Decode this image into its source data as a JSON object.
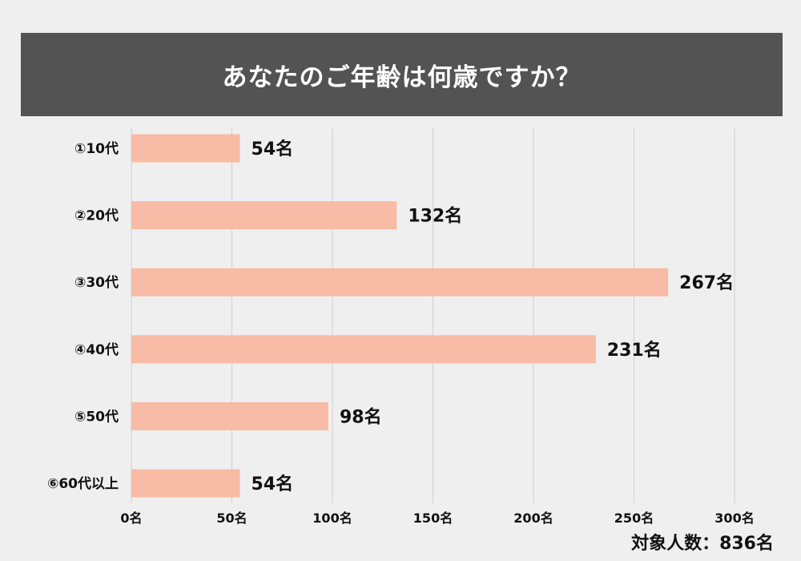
{
  "title": "あなたのご年齢は何歳ですか？",
  "total_label": "対象人数：836名",
  "colors": {
    "title_bg": "#535353",
    "bar": "#f8bba5",
    "gridline": "#cfcfcf",
    "background": "#efefef"
  },
  "chart_data": {
    "type": "bar",
    "orientation": "horizontal",
    "title": "あなたのご年齢は何歳ですか？",
    "categories": [
      "①10代",
      "②20代",
      "③30代",
      "④40代",
      "⑤50代",
      "⑥60代以上"
    ],
    "values": [
      54,
      132,
      267,
      231,
      98,
      54
    ],
    "value_labels": [
      "54名",
      "132名",
      "267名",
      "231名",
      "98名",
      "54名"
    ],
    "xlim": [
      0,
      300
    ],
    "xticks": [
      0,
      50,
      100,
      150,
      200,
      250,
      300
    ],
    "xtick_labels": [
      "0名",
      "50名",
      "100名",
      "150名",
      "200名",
      "250名",
      "300名"
    ],
    "grid": "vertical",
    "legend": "none",
    "unit": "名"
  }
}
